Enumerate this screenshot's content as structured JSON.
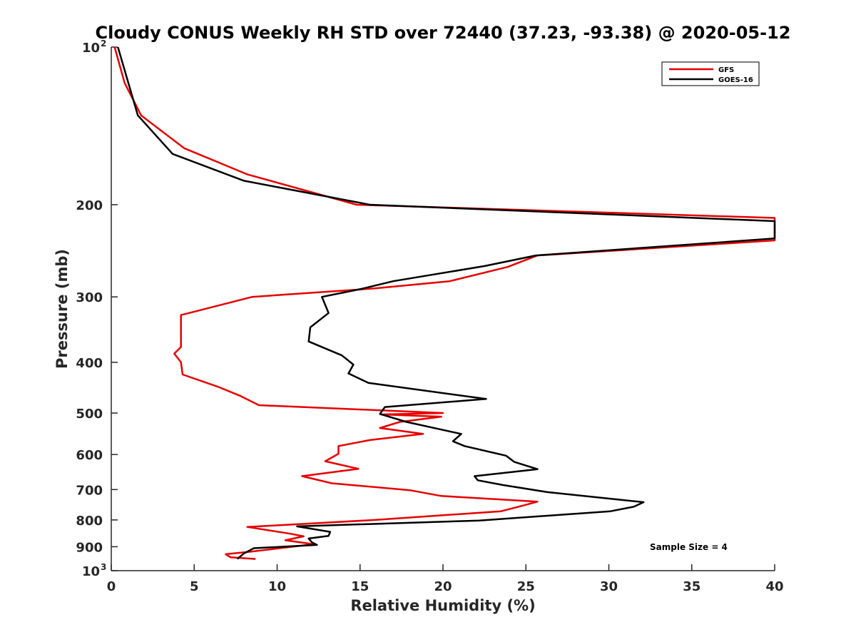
{
  "chart_data": {
    "type": "line",
    "title": "Cloudy CONUS Weekly RH STD over 72440 (37.23, -93.38) @ 2020-05-12",
    "xlabel": "Relative Humidity (%)",
    "ylabel": "Pressure (mb)",
    "xlim": [
      0,
      40
    ],
    "ylim": [
      100,
      1000
    ],
    "y_scale": "log",
    "y_reversed": true,
    "grid": false,
    "legend_position": "top-right",
    "x_ticks": [
      "0",
      "5",
      "10",
      "15",
      "20",
      "25",
      "30",
      "35",
      "40"
    ],
    "y_ticks": [
      {
        "value": 100,
        "label": "10",
        "exp": "2"
      },
      {
        "value": 200,
        "label": "200"
      },
      {
        "value": 300,
        "label": "300"
      },
      {
        "value": 400,
        "label": "400"
      },
      {
        "value": 500,
        "label": "500"
      },
      {
        "value": 600,
        "label": "600"
      },
      {
        "value": 700,
        "label": "700"
      },
      {
        "value": 800,
        "label": "800"
      },
      {
        "value": 900,
        "label": "900"
      },
      {
        "value": 1000,
        "label": "10",
        "exp": "3"
      }
    ],
    "annotation": "Sample Size = 4",
    "series": [
      {
        "name": "GFS",
        "color": "#e60000",
        "points": [
          [
            0.2,
            100
          ],
          [
            0.8,
            117
          ],
          [
            1.8,
            135
          ],
          [
            4.4,
            156
          ],
          [
            8.2,
            175
          ],
          [
            14.8,
            200
          ],
          [
            40,
            212
          ],
          [
            40,
            234
          ],
          [
            25.7,
            250
          ],
          [
            23.9,
            263
          ],
          [
            20.4,
            280
          ],
          [
            15.9,
            289
          ],
          [
            8.5,
            300
          ],
          [
            4.2,
            325
          ],
          [
            4.2,
            350
          ],
          [
            4.2,
            374
          ],
          [
            3.8,
            385
          ],
          [
            4.2,
            400
          ],
          [
            4.3,
            422
          ],
          [
            6.4,
            445
          ],
          [
            7.8,
            464
          ],
          [
            8.9,
            483
          ],
          [
            20.0,
            500
          ],
          [
            16.3,
            503
          ],
          [
            19.9,
            508
          ],
          [
            17.4,
            520
          ],
          [
            16.2,
            534
          ],
          [
            18.8,
            548
          ],
          [
            15.6,
            563
          ],
          [
            13.7,
            578
          ],
          [
            13.7,
            598
          ],
          [
            12.9,
            618
          ],
          [
            14.9,
            639
          ],
          [
            11.5,
            660
          ],
          [
            13.3,
            681
          ],
          [
            18.0,
            702
          ],
          [
            19.9,
            720
          ],
          [
            25.7,
            738
          ],
          [
            24.9,
            750
          ],
          [
            23.5,
            770
          ],
          [
            15.9,
            800
          ],
          [
            8.2,
            825
          ],
          [
            10.8,
            850
          ],
          [
            11.6,
            860
          ],
          [
            10.5,
            875
          ],
          [
            12.2,
            890
          ],
          [
            8.4,
            920
          ],
          [
            6.9,
            930
          ],
          [
            7.2,
            943
          ],
          [
            8.7,
            950
          ]
        ]
      },
      {
        "name": "GOES-16",
        "color": "#000000",
        "points": [
          [
            0.4,
            100
          ],
          [
            1.6,
            135
          ],
          [
            3.7,
            160
          ],
          [
            8.0,
            180
          ],
          [
            15.6,
            200
          ],
          [
            40,
            215
          ],
          [
            40,
            232
          ],
          [
            25.6,
            250
          ],
          [
            22.5,
            262
          ],
          [
            17.0,
            280
          ],
          [
            15.0,
            290
          ],
          [
            12.7,
            300
          ],
          [
            13.1,
            322
          ],
          [
            12.0,
            343
          ],
          [
            11.9,
            365
          ],
          [
            13.9,
            388
          ],
          [
            14.6,
            404
          ],
          [
            14.3,
            420
          ],
          [
            15.5,
            438
          ],
          [
            22.6,
            470
          ],
          [
            16.5,
            487
          ],
          [
            16.2,
            502
          ],
          [
            17.8,
            520
          ],
          [
            21.1,
            548
          ],
          [
            20.6,
            566
          ],
          [
            21.3,
            578
          ],
          [
            23.8,
            603
          ],
          [
            24.3,
            620
          ],
          [
            25.7,
            640
          ],
          [
            21.9,
            660
          ],
          [
            22.1,
            672
          ],
          [
            23.6,
            686
          ],
          [
            26.3,
            708
          ],
          [
            32.1,
            740
          ],
          [
            31.5,
            755
          ],
          [
            30.1,
            770
          ],
          [
            22.2,
            802
          ],
          [
            11.2,
            823
          ],
          [
            13.2,
            843
          ],
          [
            13.1,
            858
          ],
          [
            11.9,
            868
          ],
          [
            12.1,
            883
          ],
          [
            12.4,
            893
          ],
          [
            8.6,
            906
          ],
          [
            8.0,
            927
          ],
          [
            7.6,
            950
          ]
        ]
      }
    ]
  }
}
